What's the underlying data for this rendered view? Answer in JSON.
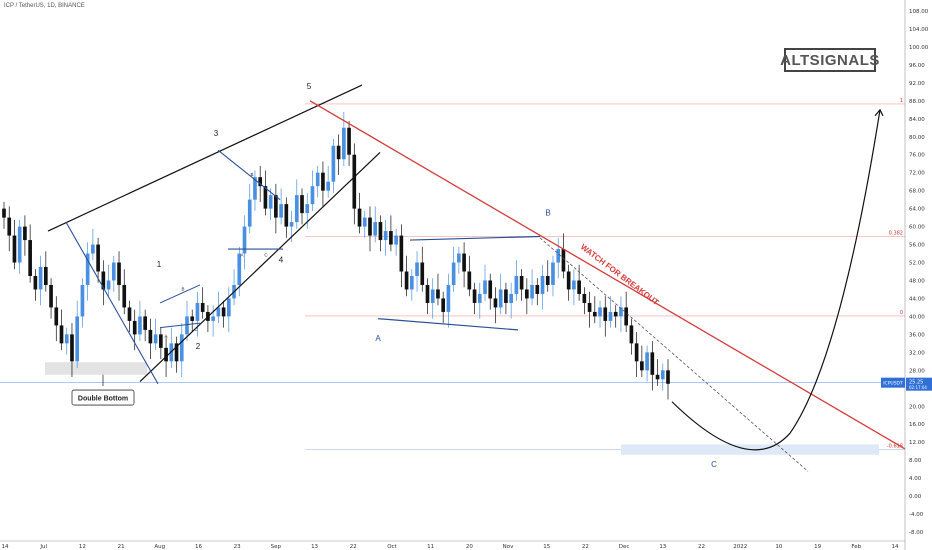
{
  "header": {
    "title": "ICP / TetherUS, 1D, BINANCE"
  },
  "brand": {
    "label": "ALTSIGNALS"
  },
  "price_tag": {
    "symbol": "ICPUSDT",
    "price": "25.25",
    "sub": "02:17:04"
  },
  "colors": {
    "up": "#4a90e2",
    "down": "#111111",
    "red_line": "#d63a3a",
    "wave_line": "#2a4f9a",
    "zone": "#dde9f7"
  },
  "annotations": {
    "double_bottom": "Double Bottom",
    "watch": "WATCH FOR BREAKOUT",
    "wave_labels": [
      "1",
      "2",
      "3",
      "4",
      "5"
    ],
    "abc_labels": [
      "A",
      "B",
      "C"
    ],
    "small_labels": [
      "A",
      "B",
      "C"
    ],
    "fib_labels": [
      "1",
      "0.382",
      "0",
      "-0.618"
    ]
  },
  "chart_data": {
    "type": "candlestick",
    "title": "ICP / TetherUS, 1D, BINANCE",
    "y_ticks": [
      108,
      104,
      100,
      96,
      92,
      88,
      84,
      80,
      76,
      72,
      68,
      64,
      60,
      56,
      52,
      48,
      44,
      40,
      36,
      32,
      28,
      24,
      20,
      16,
      12,
      8,
      4,
      0,
      -4,
      -8
    ],
    "ylim": [
      -10,
      110
    ],
    "x_ticks": [
      "14",
      "Jul",
      "12",
      "21",
      "Aug",
      "16",
      "23",
      "Sep",
      "13",
      "22",
      "Oct",
      "11",
      "20",
      "Nov",
      "15",
      "22",
      "Dec",
      "13",
      "22",
      "2022",
      "10",
      "19",
      "Feb",
      "14"
    ],
    "fib_levels": [
      {
        "label": "1",
        "value": 87.3
      },
      {
        "label": "0.382",
        "value": 57.8
      },
      {
        "label": "0",
        "value": 40.1
      },
      {
        "label": "-0.618",
        "value": 10.4
      }
    ],
    "last_price": 25.25,
    "closes": [
      62,
      58,
      52,
      60,
      57,
      49,
      46,
      51,
      47,
      42,
      38,
      34,
      36,
      30,
      40,
      47,
      54,
      56,
      50,
      46,
      48,
      52,
      47,
      42,
      39,
      36,
      40,
      37,
      34,
      36,
      33,
      30,
      34,
      30,
      36,
      40,
      39,
      43,
      41,
      39,
      40,
      42,
      40,
      44,
      47,
      54,
      60,
      66,
      71,
      69,
      64,
      67,
      62,
      65,
      60,
      61,
      67,
      63,
      65,
      69,
      72,
      68,
      70,
      78,
      75,
      82,
      76,
      64,
      60,
      62,
      58,
      61,
      57,
      59,
      56,
      58,
      50,
      46,
      49,
      52,
      47,
      43,
      46,
      44,
      41,
      47,
      52,
      54,
      50,
      46,
      43,
      45,
      48,
      44,
      42,
      46,
      43,
      45,
      49,
      46,
      44,
      47,
      45,
      49,
      47,
      52,
      55,
      50,
      46,
      48,
      45,
      43,
      41,
      40,
      42,
      39,
      41,
      40,
      42,
      38,
      34,
      30,
      28,
      32,
      27,
      26,
      28,
      25
    ]
  }
}
